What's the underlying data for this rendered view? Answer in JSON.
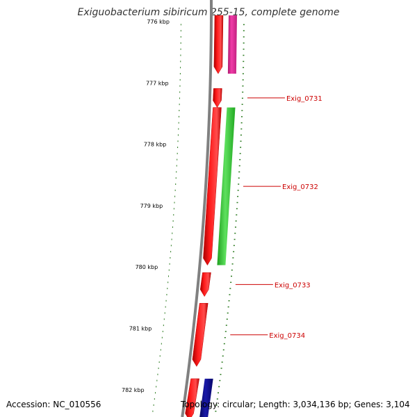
{
  "title": "Exiguobacterium sibiricum 255-15, complete genome",
  "footer": {
    "accession": "Accession: NC_010556",
    "stats": "Topology: circular; Length: 3,034,136 bp; Genes: 3,104"
  },
  "colors": {
    "backbone": "#808080",
    "tick": "#2a7a1e",
    "forward_gene": "#e80000",
    "label": "#cc0000",
    "cog_pink": "#e8289a",
    "cog_green": "#3cc83c",
    "cog_blue": "#0c0c8c"
  },
  "ruler": {
    "unit": "kbp",
    "major_ticks": [
      "776 kbp",
      "777 kbp",
      "778 kbp",
      "779 kbp",
      "780 kbp",
      "781 kbp",
      "782 kbp"
    ],
    "major_values": [
      776,
      777,
      778,
      779,
      780,
      781,
      782
    ],
    "minor_step": 0.1,
    "view_start": 775.95,
    "view_end": 782.45
  },
  "genes": [
    {
      "start": 775.9,
      "end": 776.85,
      "strand": "forward",
      "cog": "pink"
    },
    {
      "start": 777.09,
      "end": 777.4,
      "strand": "forward",
      "cog": "none",
      "label": "Exig_0731"
    },
    {
      "start": 777.4,
      "end": 779.97,
      "strand": "forward",
      "cog": "green",
      "label": "Exig_0732"
    },
    {
      "start": 780.09,
      "end": 780.48,
      "strand": "forward",
      "cog": "none",
      "label": "Exig_0733"
    },
    {
      "start": 780.59,
      "end": 781.62,
      "strand": "forward",
      "cog": "none",
      "label": "Exig_0734"
    },
    {
      "start": 781.82,
      "end": 782.5,
      "strand": "forward",
      "cog": "blue"
    }
  ]
}
